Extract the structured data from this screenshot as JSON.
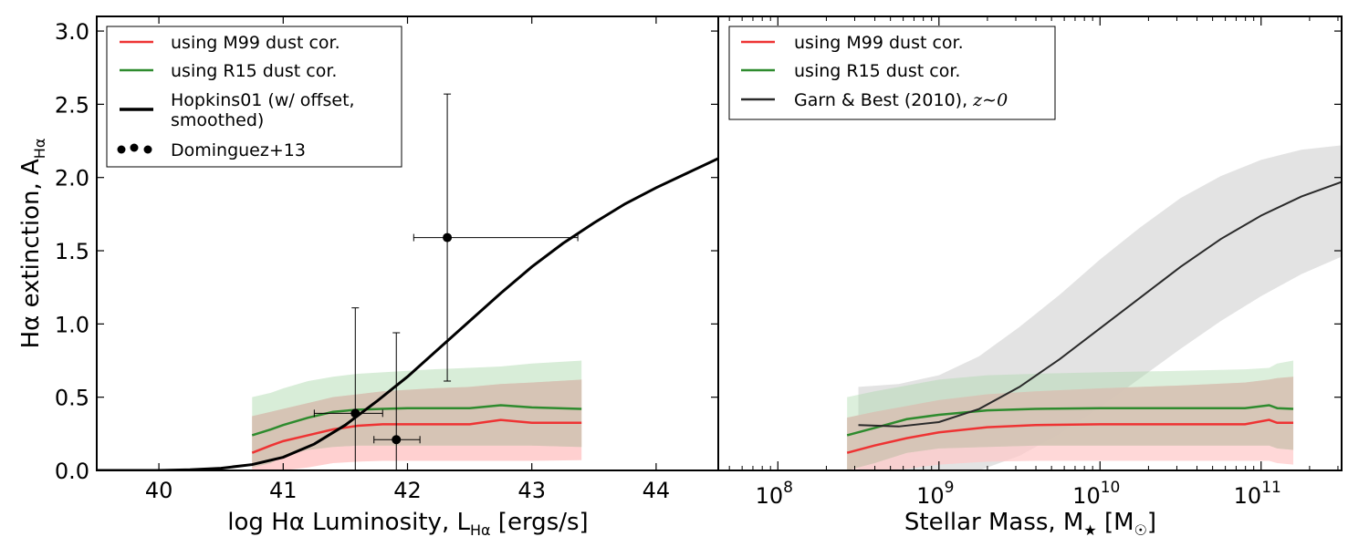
{
  "figure": {
    "ylabel": "Hα extinction, A",
    "ylabel_sub": "Hα"
  },
  "colors": {
    "m99": "#ee3333",
    "m99_band": "#ffc8c8",
    "r15": "#2e8b2e",
    "r15_band": "#a8d8a8",
    "overlap_band": "#d6c2b4",
    "hopkins": "#000000",
    "garn": "#2a2a2a",
    "garn_band": "#d9d9d9"
  },
  "chart_data": [
    {
      "type": "line",
      "panel": "left",
      "xlabel": "log Hα Luminosity, L",
      "xlabel_sub": "Hα",
      "xlabel_unit": " [ergs/s]",
      "xlim": [
        39.5,
        44.5
      ],
      "ylim": [
        0.0,
        3.1
      ],
      "xticks": [
        40,
        41,
        42,
        43,
        44
      ],
      "xtick_labels": [
        "40",
        "41",
        "42",
        "43",
        "44"
      ],
      "yticks": [
        0.0,
        0.5,
        1.0,
        1.5,
        2.0,
        2.5,
        3.0
      ],
      "ytick_labels": [
        "0.0",
        "0.5",
        "1.0",
        "1.5",
        "2.0",
        "2.5",
        "3.0"
      ],
      "legend": {
        "position": "top-left",
        "entries": [
          {
            "key": "m99",
            "label": "using M99 dust cor.",
            "marker": "line"
          },
          {
            "key": "r15",
            "label": "using R15 dust cor.",
            "marker": "line"
          },
          {
            "key": "hopkins",
            "label": "Hopkins01 (w/ offset,",
            "label2": " smoothed)",
            "marker": "thick-line"
          },
          {
            "key": "dominguez",
            "label": "Dominguez+13",
            "marker": "dots"
          }
        ]
      },
      "series": [
        {
          "name": "using M99 dust cor.",
          "key": "m99",
          "x": [
            40.75,
            40.9,
            41.0,
            41.2,
            41.4,
            41.6,
            41.8,
            42.0,
            42.2,
            42.5,
            42.75,
            43.0,
            43.4
          ],
          "y": [
            0.12,
            0.17,
            0.2,
            0.24,
            0.28,
            0.305,
            0.315,
            0.315,
            0.315,
            0.315,
            0.345,
            0.325,
            0.325
          ],
          "band_low": [
            0.0,
            0.0,
            0.0,
            0.02,
            0.05,
            0.06,
            0.065,
            0.065,
            0.065,
            0.065,
            0.065,
            0.065,
            0.07
          ],
          "band_high": [
            0.37,
            0.4,
            0.42,
            0.46,
            0.5,
            0.52,
            0.54,
            0.55,
            0.56,
            0.57,
            0.59,
            0.6,
            0.62
          ]
        },
        {
          "name": "using R15 dust cor.",
          "key": "r15",
          "x": [
            40.75,
            40.9,
            41.0,
            41.2,
            41.4,
            41.6,
            41.8,
            42.0,
            42.2,
            42.5,
            42.75,
            43.0,
            43.4
          ],
          "y": [
            0.24,
            0.28,
            0.31,
            0.36,
            0.4,
            0.415,
            0.42,
            0.425,
            0.425,
            0.425,
            0.445,
            0.43,
            0.42
          ],
          "band_low": [
            0.02,
            0.05,
            0.1,
            0.14,
            0.16,
            0.17,
            0.17,
            0.17,
            0.17,
            0.17,
            0.17,
            0.17,
            0.16
          ],
          "band_high": [
            0.5,
            0.53,
            0.56,
            0.61,
            0.64,
            0.66,
            0.67,
            0.68,
            0.69,
            0.7,
            0.71,
            0.73,
            0.75
          ]
        },
        {
          "name": "Hopkins01 (w/ offset, smoothed)",
          "key": "hopkins",
          "x": [
            39.5,
            40.0,
            40.25,
            40.5,
            40.75,
            41.0,
            41.25,
            41.5,
            41.75,
            42.0,
            42.25,
            42.5,
            42.75,
            43.0,
            43.25,
            43.5,
            43.75,
            44.0,
            44.25,
            44.5
          ],
          "y": [
            0.0,
            0.0,
            0.005,
            0.015,
            0.04,
            0.09,
            0.18,
            0.31,
            0.47,
            0.64,
            0.83,
            1.02,
            1.21,
            1.39,
            1.55,
            1.69,
            1.82,
            1.93,
            2.03,
            2.13
          ]
        }
      ],
      "points": {
        "name": "Dominguez+13",
        "key": "dominguez",
        "items": [
          {
            "x": 41.58,
            "y": 0.39,
            "xerr": [
              41.25,
              41.8
            ],
            "yerr": [
              0.0,
              1.11
            ]
          },
          {
            "x": 41.91,
            "y": 0.21,
            "xerr": [
              41.73,
              42.1
            ],
            "yerr": [
              0.0,
              0.94
            ]
          },
          {
            "x": 42.32,
            "y": 1.59,
            "xerr": [
              42.05,
              43.37
            ],
            "yerr": [
              0.61,
              2.57
            ]
          }
        ]
      }
    },
    {
      "type": "line",
      "panel": "right",
      "xlabel": "Stellar Mass, M",
      "xlabel_sub": "★",
      "xlabel_unit_pre": " [M",
      "xlabel_unit_sub": "☉",
      "xlabel_unit_post": "]",
      "xscale": "log",
      "xlim_log10": [
        7.63,
        11.5
      ],
      "ylim": [
        0.0,
        3.1
      ],
      "xticks_log10": [
        8,
        9,
        10,
        11
      ],
      "xtick_base": "10",
      "xtick_exps": [
        "8",
        "9",
        "10",
        "11"
      ],
      "legend": {
        "position": "top-left",
        "entries": [
          {
            "key": "m99",
            "label": "using M99 dust cor.",
            "marker": "line"
          },
          {
            "key": "r15",
            "label": "using R15 dust cor.",
            "marker": "line"
          },
          {
            "key": "garn",
            "label": "Garn & Best (2010), ",
            "label_math": "z∼0",
            "marker": "line"
          }
        ]
      },
      "series": [
        {
          "name": "using M99 dust cor.",
          "key": "m99",
          "logx": [
            8.43,
            8.6,
            8.8,
            9.0,
            9.3,
            9.6,
            10.0,
            10.5,
            10.9,
            11.05,
            11.1,
            11.2
          ],
          "y": [
            0.12,
            0.17,
            0.22,
            0.26,
            0.295,
            0.31,
            0.315,
            0.315,
            0.315,
            0.345,
            0.325,
            0.325
          ],
          "band_low": [
            0.0,
            0.0,
            0.01,
            0.04,
            0.06,
            0.065,
            0.065,
            0.065,
            0.065,
            0.065,
            0.05,
            0.04
          ],
          "band_high": [
            0.36,
            0.4,
            0.44,
            0.48,
            0.52,
            0.54,
            0.56,
            0.58,
            0.6,
            0.62,
            0.63,
            0.64
          ]
        },
        {
          "name": "using R15 dust cor.",
          "key": "r15",
          "logx": [
            8.43,
            8.6,
            8.8,
            9.0,
            9.3,
            9.6,
            10.0,
            10.5,
            10.9,
            11.05,
            11.1,
            11.2
          ],
          "y": [
            0.24,
            0.29,
            0.35,
            0.38,
            0.41,
            0.42,
            0.425,
            0.425,
            0.425,
            0.445,
            0.425,
            0.42
          ],
          "band_low": [
            0.0,
            0.05,
            0.12,
            0.15,
            0.16,
            0.17,
            0.17,
            0.17,
            0.17,
            0.17,
            0.15,
            0.14
          ],
          "band_high": [
            0.5,
            0.54,
            0.58,
            0.62,
            0.65,
            0.66,
            0.67,
            0.68,
            0.69,
            0.7,
            0.73,
            0.75
          ]
        },
        {
          "name": "Garn & Best (2010), z∼0",
          "key": "garn",
          "logx": [
            8.5,
            8.75,
            9.0,
            9.25,
            9.5,
            9.75,
            10.0,
            10.25,
            10.5,
            10.75,
            11.0,
            11.25,
            11.5
          ],
          "y": [
            0.31,
            0.3,
            0.33,
            0.42,
            0.57,
            0.76,
            0.97,
            1.18,
            1.39,
            1.58,
            1.74,
            1.87,
            1.97
          ],
          "band_low": [
            0.0,
            0.0,
            0.0,
            0.0,
            0.1,
            0.25,
            0.43,
            0.63,
            0.83,
            1.02,
            1.19,
            1.34,
            1.46
          ],
          "band_high": [
            0.57,
            0.59,
            0.65,
            0.78,
            0.98,
            1.2,
            1.44,
            1.66,
            1.86,
            2.01,
            2.12,
            2.19,
            2.22
          ]
        }
      ]
    }
  ]
}
